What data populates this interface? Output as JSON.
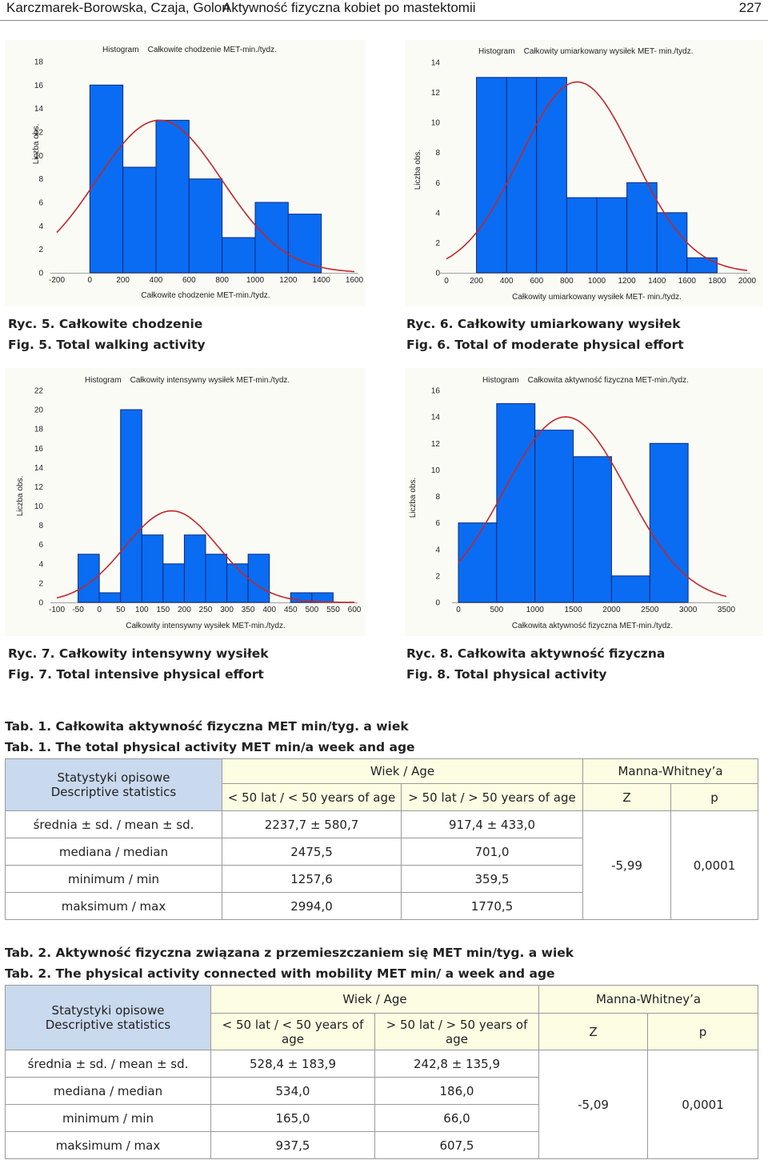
{
  "header": {
    "authors": "Karczmarek-Borowska, Czaja, Golon",
    "title": "Aktywność fizyczna kobiet po mastektomii",
    "page": "227"
  },
  "figures": [
    {
      "id": "fig5",
      "title": "Histogram    Całkowite chodzenie MET-min./tydz.",
      "caption_pl": "Ryc. 5. Całkowite chodzenie",
      "caption_en": "Fig. 5. Total walking activity",
      "chart_data": {
        "type": "bar",
        "ylabel": "Liczba obs.",
        "xlabel": "Całkowite chodzenie MET-min./tydz.",
        "xlim": [
          -200,
          1600
        ],
        "ylim": [
          0,
          18
        ],
        "xticks": [
          "-200",
          "0",
          "200",
          "400",
          "600",
          "800",
          "1000",
          "1200",
          "1400",
          "1600"
        ],
        "yticks": [
          "0",
          "2",
          "4",
          "6",
          "8",
          "10",
          "12",
          "14",
          "16",
          "18"
        ],
        "bins": [
          [
            0,
            200
          ],
          [
            200,
            400
          ],
          [
            400,
            600
          ],
          [
            600,
            800
          ],
          [
            800,
            1000
          ],
          [
            1000,
            1200
          ],
          [
            1200,
            1400
          ]
        ],
        "values": [
          16,
          9,
          13,
          8,
          3,
          6,
          5
        ],
        "curve": {
          "type": "normal",
          "mean": 420,
          "sd": 380,
          "peak": 13
        }
      }
    },
    {
      "id": "fig6",
      "title": "Histogram    Całkowity umiarkowany wysiłek MET- min./tydz.",
      "caption_pl": "Ryc. 6. Całkowity umiarkowany wysiłek",
      "caption_en": "Fig. 6. Total of moderate physical effort",
      "chart_data": {
        "type": "bar",
        "ylabel": "Liczba obs.",
        "xlabel": "Całkowity umiarkowany wysiłek MET- min./tydz.",
        "xlim": [
          0,
          2000
        ],
        "ylim": [
          0,
          14
        ],
        "xticks": [
          "0",
          "200",
          "400",
          "600",
          "800",
          "1000",
          "1200",
          "1400",
          "1600",
          "1800",
          "2000"
        ],
        "yticks": [
          "0",
          "2",
          "4",
          "6",
          "8",
          "10",
          "12",
          "14"
        ],
        "bins": [
          [
            200,
            400
          ],
          [
            400,
            600
          ],
          [
            600,
            800
          ],
          [
            800,
            1000
          ],
          [
            1000,
            1200
          ],
          [
            1200,
            1400
          ],
          [
            1400,
            1600
          ],
          [
            1600,
            1800
          ]
        ],
        "values": [
          13,
          13,
          13,
          5,
          5,
          6,
          4,
          1
        ],
        "curve": {
          "type": "normal",
          "mean": 870,
          "sd": 380,
          "peak": 12.7
        }
      }
    },
    {
      "id": "fig7",
      "title": "Histogram    Całkowity intensywny wysiłek MET-min./tydz.",
      "caption_pl": "Ryc. 7. Całkowity intensywny wysiłek",
      "caption_en": "Fig. 7. Total intensive physical effort",
      "chart_data": {
        "type": "bar",
        "ylabel": "Liczba obs.",
        "xlabel": "Całkowity intensywny wysiłek MET-min./tydz.",
        "xlim": [
          -100,
          600
        ],
        "ylim": [
          0,
          22
        ],
        "xticks": [
          "-100",
          "-50",
          "0",
          "50",
          "100",
          "150",
          "200",
          "250",
          "300",
          "350",
          "400",
          "450",
          "500",
          "550",
          "600"
        ],
        "yticks": [
          "0",
          "2",
          "4",
          "6",
          "8",
          "10",
          "12",
          "14",
          "16",
          "18",
          "20",
          "22"
        ],
        "bins": [
          [
            -50,
            0
          ],
          [
            0,
            50
          ],
          [
            50,
            100
          ],
          [
            100,
            150
          ],
          [
            150,
            200
          ],
          [
            200,
            250
          ],
          [
            250,
            300
          ],
          [
            300,
            350
          ],
          [
            350,
            400
          ],
          [
            400,
            450
          ],
          [
            450,
            500
          ],
          [
            500,
            550
          ]
        ],
        "values": [
          5,
          1,
          20,
          7,
          4,
          7,
          5,
          4,
          5,
          0,
          1,
          1
        ],
        "curve": {
          "type": "normal",
          "mean": 170,
          "sd": 110,
          "peak": 9.5
        }
      }
    },
    {
      "id": "fig8",
      "title": "Histogram    Całkowita aktywność fizyczna MET-min./tydz.",
      "caption_pl": "Ryc. 8. Całkowita aktywność fizyczna",
      "caption_en": "Fig. 8. Total physical activity",
      "chart_data": {
        "type": "bar",
        "ylabel": "Liczba obs.",
        "xlabel": "Całkowita aktywność fizyczna MET-min./tydz.",
        "xlim": [
          0,
          3500
        ],
        "ylim": [
          0,
          16
        ],
        "xticks": [
          "0",
          "500",
          "1000",
          "1500",
          "2000",
          "2500",
          "3000",
          "3500"
        ],
        "yticks": [
          "0",
          "2",
          "4",
          "6",
          "8",
          "10",
          "12",
          "14",
          "16"
        ],
        "bins": [
          [
            0,
            500
          ],
          [
            500,
            1000
          ],
          [
            1000,
            1500
          ],
          [
            1500,
            2000
          ],
          [
            2000,
            2500
          ],
          [
            2500,
            3000
          ]
        ],
        "values": [
          6,
          15,
          13,
          11,
          2,
          12
        ],
        "curve": {
          "type": "normal",
          "mean": 1400,
          "sd": 800,
          "peak": 14
        }
      }
    }
  ],
  "table1": {
    "caption_pl": "Tab. 1. Całkowita aktywność fizyczna MET min/tyg. a wiek",
    "caption_en": "Tab. 1. The total physical activity MET min/a week and age",
    "stat_header_1": "Statystyki opisowe",
    "stat_header_2": "Descriptive statistics",
    "age_header": "Wiek / Age",
    "mw_header": "Manna-Whitney’a",
    "col_young": "< 50 lat / < 50 years of age",
    "col_old": "> 50 lat / > 50 years of age",
    "col_z": "Z",
    "col_p": "p",
    "rows": [
      {
        "label": "średnia ± sd. / mean ± sd.",
        "young": "2237,7 ± 580,7",
        "old": "917,4 ± 433,0"
      },
      {
        "label": "mediana / median",
        "young": "2475,5",
        "old": "701,0"
      },
      {
        "label": "minimum / min",
        "young": "1257,6",
        "old": "359,5"
      },
      {
        "label": "maksimum / max",
        "young": "2994,0",
        "old": "1770,5"
      }
    ],
    "z": "-5,99",
    "p": "0,0001"
  },
  "table2": {
    "caption_pl": "Tab. 2. Aktywność fizyczna związana z przemieszczaniem się MET min/tyg. a wiek",
    "caption_en": "Tab. 2. The physical activity connected with mobility MET min/ a week and age",
    "stat_header_1": "Statystyki opisowe",
    "stat_header_2": "Descriptive statistics",
    "age_header": "Wiek / Age",
    "mw_header": "Manna-Whitney’a",
    "col_young": "< 50 lat / < 50 years of age",
    "col_old": "> 50 lat / > 50 years of age",
    "col_z": "Z",
    "col_p": "p",
    "rows": [
      {
        "label": "średnia ± sd. / mean ± sd.",
        "young": "528,4 ± 183,9",
        "old": "242,8 ± 135,9"
      },
      {
        "label": "mediana / median",
        "young": "534,0",
        "old": "186,0"
      },
      {
        "label": "minimum / min",
        "young": "165,0",
        "old": "66,0"
      },
      {
        "label": "maksimum / max",
        "young": "937,5",
        "old": "607,5"
      }
    ],
    "z": "-5,09",
    "p": "0,0001"
  },
  "colors": {
    "bar": "#0a6cf2",
    "bar_edge": "#0d2a7a",
    "curve": "#c0282a"
  }
}
